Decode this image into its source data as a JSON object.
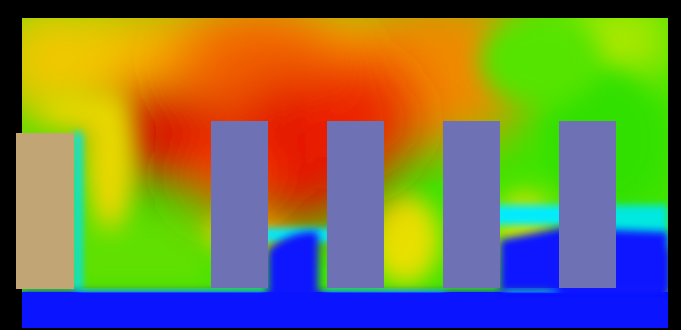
{
  "scene": {
    "frame_color": "#000000",
    "ground_color": "#0a14ff",
    "inlet_block_color": "#c2a574",
    "obstacle_color": "#6e72b4",
    "obstacle_count": 4,
    "field_palette": [
      "#0000ff",
      "#00e5ff",
      "#36e600",
      "#f5e600",
      "#ff7a00",
      "#e00000"
    ]
  }
}
